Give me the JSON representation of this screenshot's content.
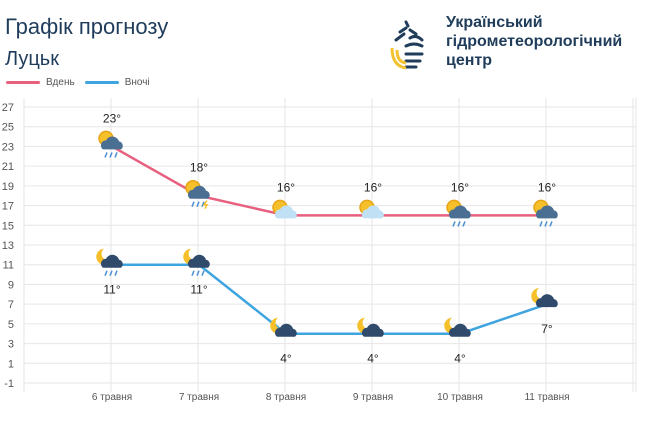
{
  "header": {
    "title": "Графік прогнозу",
    "city": "Луцьк"
  },
  "organization": {
    "line1": "Український",
    "line2": "гідрометеорологічний",
    "line3": "центр",
    "logo_colors": [
      "#1f3c5a",
      "#f2c230"
    ]
  },
  "chart_data": {
    "type": "line",
    "categories": [
      "6 травня",
      "7 травня",
      "8 травня",
      "9 травня",
      "10 травня",
      "11 травня"
    ],
    "series": [
      {
        "name": "Вдень",
        "color": "#e8607f",
        "values": [
          23,
          18,
          16,
          16,
          16,
          16
        ],
        "labels": [
          "23°",
          "18°",
          "16°",
          "16°",
          "16°",
          "16°"
        ],
        "icons": [
          "sun-cloud-rain",
          "sun-cloud-thunder-rain",
          "sun-light-cloud",
          "sun-light-cloud",
          "sun-cloud-rain",
          "sun-cloud-rain"
        ]
      },
      {
        "name": "Вночі",
        "color": "#3fa5e0",
        "values": [
          11,
          11,
          4,
          4,
          4,
          7
        ],
        "labels": [
          "11°",
          "11°",
          "4°",
          "4°",
          "4°",
          "7°"
        ],
        "icons": [
          "moon-cloud-rain",
          "moon-cloud-rain",
          "moon-cloud",
          "moon-cloud",
          "moon-cloud",
          "moon-cloud"
        ]
      }
    ],
    "yticks": [
      -1,
      1,
      3,
      5,
      7,
      9,
      11,
      13,
      15,
      17,
      19,
      21,
      23,
      25,
      27
    ],
    "ylim": [
      -1,
      27
    ],
    "grid": true,
    "legend": "top-left"
  }
}
